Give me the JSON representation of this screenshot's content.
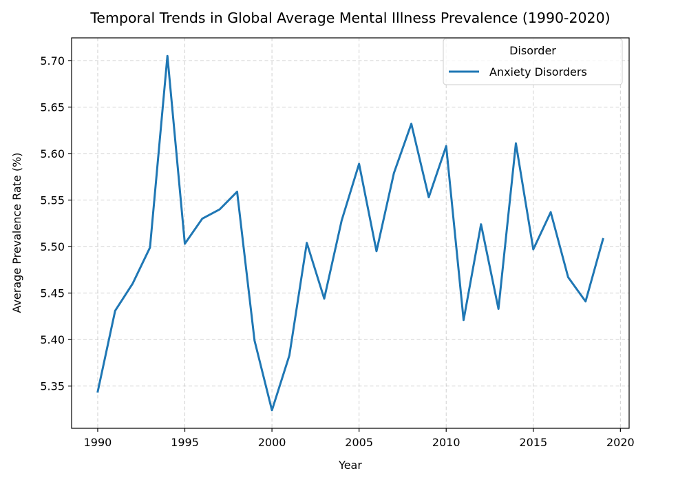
{
  "chart_data": {
    "type": "line",
    "title": "Temporal Trends in Global Average Mental Illness Prevalence (1990-2020)",
    "xlabel": "Year",
    "ylabel": "Average Prevalence Rate (%)",
    "xlim": [
      1988.5,
      2020.5
    ],
    "ylim": [
      5.3046,
      5.7244
    ],
    "x_ticks": [
      1990,
      1995,
      2000,
      2005,
      2010,
      2015,
      2020
    ],
    "y_ticks": [
      5.35,
      5.4,
      5.45,
      5.5,
      5.55,
      5.6,
      5.65,
      5.7
    ],
    "y_tick_labels": [
      "5.35",
      "5.40",
      "5.45",
      "5.50",
      "5.55",
      "5.60",
      "5.65",
      "5.70"
    ],
    "grid": true,
    "legend": {
      "title": "Disorder",
      "placement": "upper right"
    },
    "x": [
      1990,
      1991,
      1992,
      1993,
      1994,
      1995,
      1996,
      1997,
      1998,
      1999,
      2000,
      2001,
      2002,
      2003,
      2004,
      2005,
      2006,
      2007,
      2008,
      2009,
      2010,
      2011,
      2012,
      2013,
      2014,
      2015,
      2016,
      2017,
      2018,
      2019
    ],
    "series": [
      {
        "name": "Anxiety Disorders",
        "color": "#1f77b4",
        "values": [
          5.344,
          5.431,
          5.46,
          5.499,
          5.705,
          5.503,
          5.53,
          5.54,
          5.559,
          5.399,
          5.324,
          5.383,
          5.504,
          5.444,
          5.528,
          5.589,
          5.495,
          5.579,
          5.632,
          5.553,
          5.608,
          5.421,
          5.524,
          5.433,
          5.611,
          5.497,
          5.537,
          5.467,
          5.441,
          5.508
        ]
      }
    ]
  }
}
